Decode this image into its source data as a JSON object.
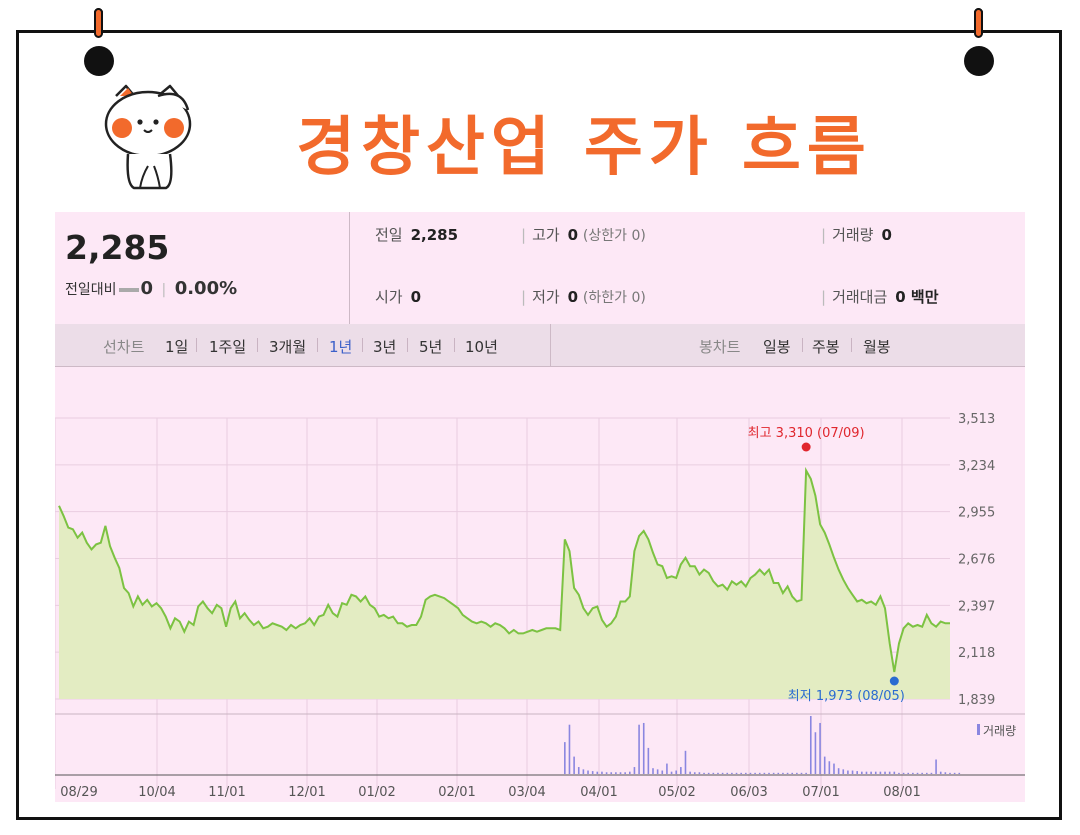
{
  "title": "경창산업 주가 흐름",
  "summary": {
    "price": "2,285",
    "change_label": "전일대비",
    "change_value": "0",
    "change_pct": "0.00%",
    "prev_label": "전일",
    "prev_value": "2,285",
    "high_label": "고가",
    "high_value": "0",
    "upper_limit": "(상한가 0)",
    "volume_label": "거래량",
    "volume_value": "0",
    "open_label": "시가",
    "open_value": "0",
    "low_label": "저가",
    "low_value": "0",
    "lower_limit": "(하한가 0)",
    "amount_label": "거래대금",
    "amount_value": "0 백만"
  },
  "tabs": {
    "line_chart_label": "선차트",
    "periods": [
      "1일",
      "1주일",
      "3개월",
      "1년",
      "3년",
      "5년",
      "10년"
    ],
    "selected_period": "1년",
    "candle_chart_label": "봉차트",
    "candle_periods": [
      "일봉",
      "주봉",
      "월봉"
    ]
  },
  "colors": {
    "accent": "#f26a2c",
    "panel": "#fde8f6",
    "line": "#7cc242",
    "fill": "#e3ecc2",
    "high": "#e0262d",
    "low": "#2a6bd1"
  },
  "chart_data": {
    "type": "area",
    "y_ticks": [
      "3,513",
      "3,234",
      "2,955",
      "2,676",
      "2,397",
      "2,118",
      "1,839"
    ],
    "ylim": [
      1839,
      3513
    ],
    "x_ticks": [
      "08/29",
      "10/04",
      "11/01",
      "12/01",
      "01/02",
      "02/01",
      "03/04",
      "04/01",
      "05/02",
      "06/03",
      "07/01",
      "08/01"
    ],
    "high_label": "최고 3,310 (07/09)",
    "low_label": "최저 1,973 (08/05)",
    "volume_label": "거래량",
    "series": [
      {
        "values": [
          2990,
          2930,
          2860,
          2850,
          2800,
          2830,
          2770,
          2730,
          2760,
          2770,
          2870,
          2750,
          2680,
          2620,
          2500,
          2470,
          2390,
          2450,
          2400,
          2430,
          2390,
          2410,
          2380,
          2330,
          2260,
          2320,
          2300,
          2240,
          2300,
          2280,
          2390,
          2420,
          2380,
          2350,
          2400,
          2380,
          2270,
          2380,
          2420,
          2320,
          2350,
          2310,
          2280,
          2300,
          2260,
          2270,
          2290,
          2280,
          2270,
          2250,
          2280,
          2260,
          2280,
          2290,
          2320,
          2280,
          2330,
          2340,
          2400,
          2350,
          2330,
          2410,
          2400,
          2460,
          2450,
          2420,
          2450,
          2400,
          2380,
          2330,
          2340,
          2320,
          2330,
          2290,
          2290,
          2270,
          2280,
          2280,
          2330,
          2430,
          2450,
          2460,
          2450,
          2440,
          2420,
          2400,
          2380,
          2340,
          2320,
          2300,
          2290,
          2300,
          2290,
          2270,
          2290,
          2280,
          2260,
          2230,
          2250,
          2230,
          2230,
          2240,
          2250,
          2240,
          2250,
          2260,
          2260,
          2260,
          2250,
          2790,
          2720,
          2500,
          2460,
          2380,
          2340,
          2380,
          2390,
          2310,
          2270,
          2290,
          2330,
          2420,
          2420,
          2450,
          2720,
          2810,
          2840,
          2790,
          2710,
          2640,
          2630,
          2560,
          2570,
          2560,
          2640,
          2680,
          2630,
          2630,
          2580,
          2610,
          2590,
          2540,
          2510,
          2520,
          2490,
          2540,
          2520,
          2540,
          2510,
          2560,
          2580,
          2610,
          2580,
          2610,
          2530,
          2530,
          2470,
          2510,
          2450,
          2420,
          2430,
          3200,
          3150,
          3050,
          2880,
          2830,
          2760,
          2680,
          2610,
          2550,
          2500,
          2460,
          2420,
          2430,
          2410,
          2420,
          2400,
          2450,
          2380,
          2170,
          2000,
          2170,
          2260,
          2290,
          2270,
          2280,
          2270,
          2340,
          2290,
          2270,
          2300,
          2290,
          2290
        ]
      }
    ],
    "volume": [
      0,
      0,
      0,
      0,
      0,
      0,
      0,
      0,
      0,
      0,
      0,
      0,
      0,
      0,
      0,
      0,
      0,
      0,
      0,
      0,
      0,
      0,
      0,
      0,
      0,
      0,
      0,
      0,
      0,
      0,
      0,
      0,
      0,
      0,
      0,
      0,
      0,
      0,
      0,
      0,
      0,
      0,
      0,
      0,
      0,
      0,
      0,
      0,
      0,
      0,
      0,
      0,
      0,
      0,
      0,
      0,
      0,
      0,
      0,
      0,
      0,
      0,
      0,
      0,
      0,
      0,
      0,
      0,
      0,
      0,
      0,
      0,
      0,
      0,
      0,
      0,
      0,
      0,
      0,
      0,
      0,
      0,
      0,
      0,
      0,
      0,
      0,
      0,
      0,
      0,
      0,
      0,
      0,
      0,
      0,
      0,
      0,
      0,
      0,
      0,
      0,
      0,
      0,
      0,
      0,
      0,
      0,
      0,
      0,
      0.55,
      0.85,
      0.3,
      0.12,
      0.08,
      0.06,
      0.05,
      0.04,
      0.04,
      0.03,
      0.03,
      0.03,
      0.03,
      0.03,
      0.04,
      0.12,
      0.85,
      0.88,
      0.45,
      0.1,
      0.08,
      0.06,
      0.18,
      0.04,
      0.06,
      0.12,
      0.4,
      0.04,
      0.03,
      0.03,
      0.02,
      0.02,
      0.02,
      0.02,
      0.02,
      0.02,
      0.02,
      0.02,
      0.02,
      0.02,
      0.02,
      0.02,
      0.02,
      0.02,
      0.02,
      0.02,
      0.02,
      0.02,
      0.02,
      0.02,
      0.02,
      0.02,
      0.02,
      1.0,
      0.72,
      0.88,
      0.3,
      0.22,
      0.18,
      0.1,
      0.08,
      0.06,
      0.06,
      0.05,
      0.04,
      0.04,
      0.04,
      0.04,
      0.04,
      0.04,
      0.04,
      0.04,
      0.02,
      0.02,
      0.02,
      0.02,
      0.02,
      0.02,
      0.02,
      0.02,
      0.25,
      0.04,
      0.03,
      0.02,
      0.02,
      0.02
    ]
  }
}
